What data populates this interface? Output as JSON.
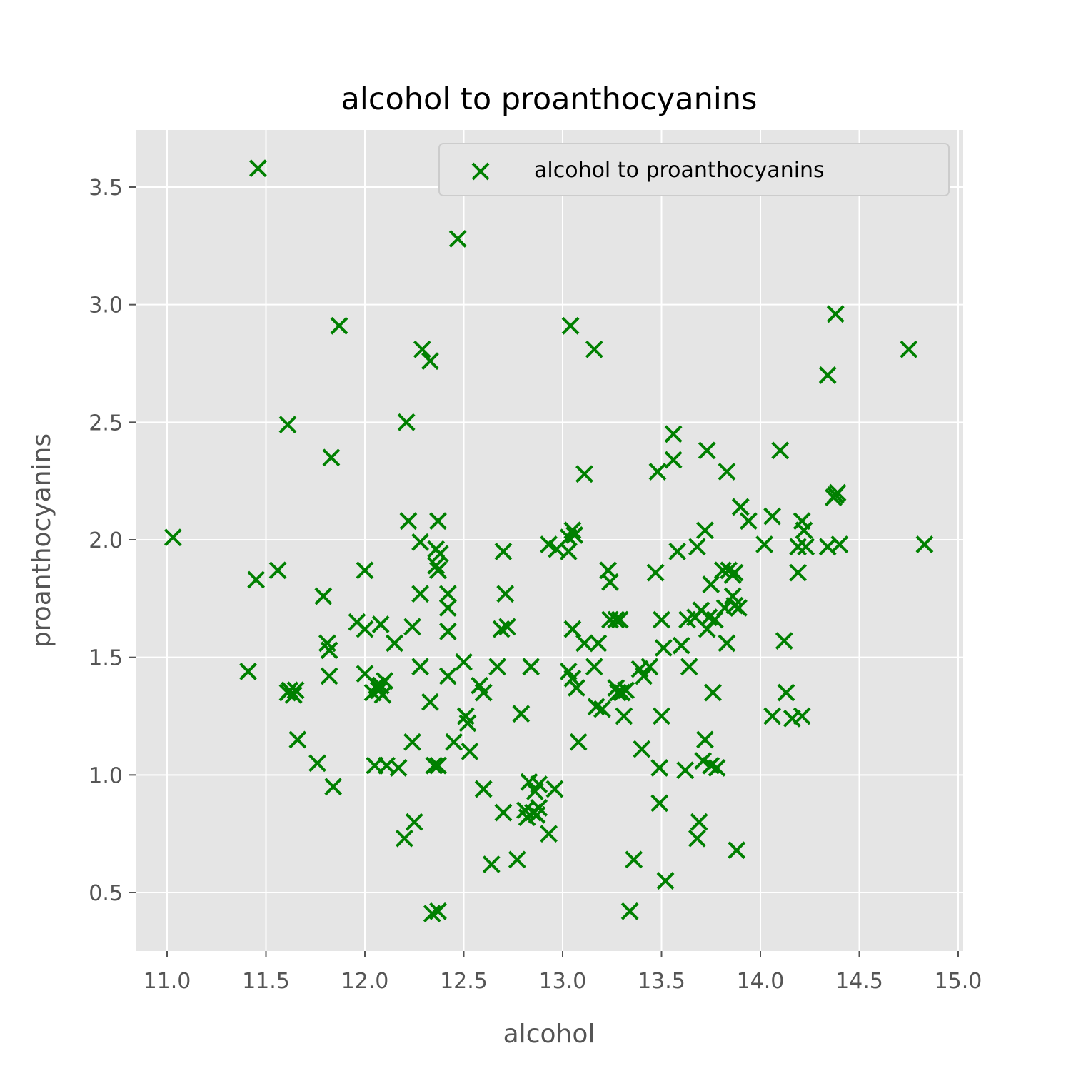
{
  "chart_data": {
    "type": "scatter",
    "title": "alcohol to proanthocyanins",
    "xlabel": "alcohol",
    "ylabel": "proanthocyanins",
    "xlim": [
      10.84,
      15.0
    ],
    "ylim": [
      0.25,
      3.75
    ],
    "xticks": [
      "11.0",
      "11.5",
      "12.0",
      "12.5",
      "13.0",
      "13.5",
      "14.0",
      "14.5",
      "15.0"
    ],
    "yticks": [
      "0.5",
      "1.0",
      "1.5",
      "2.0",
      "2.5",
      "3.0",
      "3.5"
    ],
    "grid": true,
    "legend_position": "top-right",
    "marker": "x",
    "colors": {
      "marker": "#008000",
      "plot_bg": "#e5e5e5",
      "grid": "#ffffff",
      "axis_text": "#555555"
    },
    "series": [
      {
        "name": "alcohol to proanthocyanins",
        "points": [
          [
            11.03,
            2.01
          ],
          [
            11.41,
            1.44
          ],
          [
            11.45,
            1.83
          ],
          [
            11.46,
            3.58
          ],
          [
            11.56,
            1.87
          ],
          [
            11.61,
            2.49
          ],
          [
            11.61,
            1.35
          ],
          [
            11.62,
            1.36
          ],
          [
            11.64,
            1.34
          ],
          [
            11.65,
            1.36
          ],
          [
            11.66,
            1.15
          ],
          [
            11.76,
            1.05
          ],
          [
            11.79,
            1.76
          ],
          [
            11.81,
            1.56
          ],
          [
            11.82,
            1.53
          ],
          [
            11.82,
            1.42
          ],
          [
            11.83,
            2.35
          ],
          [
            11.84,
            0.95
          ],
          [
            11.87,
            2.91
          ],
          [
            11.96,
            1.65
          ],
          [
            12.0,
            1.87
          ],
          [
            12.0,
            1.62
          ],
          [
            12.0,
            1.43
          ],
          [
            12.04,
            1.35
          ],
          [
            12.05,
            1.04
          ],
          [
            12.06,
            1.38
          ],
          [
            12.07,
            1.36
          ],
          [
            12.08,
            1.64
          ],
          [
            12.08,
            1.38
          ],
          [
            12.09,
            1.34
          ],
          [
            12.1,
            1.4
          ],
          [
            12.11,
            1.04
          ],
          [
            12.15,
            1.56
          ],
          [
            12.17,
            1.03
          ],
          [
            12.2,
            0.73
          ],
          [
            12.21,
            2.5
          ],
          [
            12.22,
            2.08
          ],
          [
            12.24,
            1.63
          ],
          [
            12.24,
            1.14
          ],
          [
            12.25,
            0.8
          ],
          [
            12.28,
            1.99
          ],
          [
            12.28,
            1.77
          ],
          [
            12.28,
            1.46
          ],
          [
            12.29,
            2.81
          ],
          [
            12.33,
            2.76
          ],
          [
            12.33,
            1.31
          ],
          [
            12.34,
            0.41
          ],
          [
            12.35,
            1.04
          ],
          [
            12.36,
            1.96
          ],
          [
            12.36,
            1.89
          ],
          [
            12.37,
            2.08
          ],
          [
            12.37,
            1.87
          ],
          [
            12.37,
            1.04
          ],
          [
            12.37,
            0.42
          ],
          [
            12.38,
            1.94
          ],
          [
            12.42,
            1.77
          ],
          [
            12.42,
            1.71
          ],
          [
            12.42,
            1.61
          ],
          [
            12.42,
            1.42
          ],
          [
            12.45,
            1.14
          ],
          [
            12.47,
            3.28
          ],
          [
            12.5,
            1.48
          ],
          [
            12.51,
            1.25
          ],
          [
            12.52,
            1.22
          ],
          [
            12.53,
            1.1
          ],
          [
            12.58,
            1.38
          ],
          [
            12.6,
            1.35
          ],
          [
            12.6,
            0.94
          ],
          [
            12.64,
            0.62
          ],
          [
            12.67,
            1.46
          ],
          [
            12.69,
            1.62
          ],
          [
            12.7,
            1.95
          ],
          [
            12.7,
            0.84
          ],
          [
            12.71,
            1.77
          ],
          [
            12.72,
            1.63
          ],
          [
            12.77,
            0.64
          ],
          [
            12.79,
            1.26
          ],
          [
            12.81,
            0.85
          ],
          [
            12.82,
            0.82
          ],
          [
            12.83,
            0.97
          ],
          [
            12.84,
            1.46
          ],
          [
            12.85,
            0.84
          ],
          [
            12.86,
            0.93
          ],
          [
            12.87,
            0.83
          ],
          [
            12.88,
            0.96
          ],
          [
            12.88,
            0.86
          ],
          [
            12.93,
            1.98
          ],
          [
            12.93,
            0.75
          ],
          [
            12.96,
            0.94
          ],
          [
            12.97,
            1.96
          ],
          [
            13.03,
            2.01
          ],
          [
            13.03,
            1.95
          ],
          [
            13.03,
            1.44
          ],
          [
            13.04,
            2.91
          ],
          [
            13.05,
            2.04
          ],
          [
            13.05,
            1.62
          ],
          [
            13.05,
            1.41
          ],
          [
            13.06,
            2.02
          ],
          [
            13.07,
            1.37
          ],
          [
            13.08,
            1.14
          ],
          [
            13.11,
            2.28
          ],
          [
            13.11,
            1.56
          ],
          [
            13.16,
            2.81
          ],
          [
            13.16,
            1.46
          ],
          [
            13.17,
            1.29
          ],
          [
            13.18,
            1.56
          ],
          [
            13.2,
            1.28
          ],
          [
            13.23,
            1.87
          ],
          [
            13.24,
            1.82
          ],
          [
            13.24,
            1.66
          ],
          [
            13.27,
            1.66
          ],
          [
            13.27,
            1.37
          ],
          [
            13.28,
            1.35
          ],
          [
            13.29,
            1.66
          ],
          [
            13.3,
            1.35
          ],
          [
            13.31,
            1.25
          ],
          [
            13.32,
            1.36
          ],
          [
            13.34,
            0.42
          ],
          [
            13.36,
            0.64
          ],
          [
            13.39,
            1.45
          ],
          [
            13.4,
            1.11
          ],
          [
            13.41,
            1.42
          ],
          [
            13.44,
            1.46
          ],
          [
            13.47,
            1.86
          ],
          [
            13.48,
            2.29
          ],
          [
            13.49,
            1.03
          ],
          [
            13.49,
            0.88
          ],
          [
            13.5,
            1.66
          ],
          [
            13.5,
            1.25
          ],
          [
            13.51,
            1.54
          ],
          [
            13.52,
            0.55
          ],
          [
            13.56,
            2.45
          ],
          [
            13.56,
            2.34
          ],
          [
            13.58,
            1.95
          ],
          [
            13.6,
            1.55
          ],
          [
            13.62,
            1.02
          ],
          [
            13.63,
            1.66
          ],
          [
            13.64,
            1.46
          ],
          [
            13.67,
            1.67
          ],
          [
            13.68,
            1.97
          ],
          [
            13.68,
            0.73
          ],
          [
            13.69,
            0.8
          ],
          [
            13.7,
            1.7
          ],
          [
            13.71,
            1.06
          ],
          [
            13.72,
            2.04
          ],
          [
            13.72,
            1.15
          ],
          [
            13.73,
            2.38
          ],
          [
            13.73,
            1.62
          ],
          [
            13.74,
            1.67
          ],
          [
            13.75,
            1.81
          ],
          [
            13.75,
            1.04
          ],
          [
            13.76,
            1.35
          ],
          [
            13.77,
            1.66
          ],
          [
            13.78,
            1.03
          ],
          [
            13.81,
            1.87
          ],
          [
            13.82,
            1.71
          ],
          [
            13.83,
            2.29
          ],
          [
            13.83,
            1.56
          ],
          [
            13.84,
            1.87
          ],
          [
            13.86,
            1.85
          ],
          [
            13.86,
            1.76
          ],
          [
            13.87,
            1.86
          ],
          [
            13.87,
            1.72
          ],
          [
            13.88,
            0.68
          ],
          [
            13.89,
            1.71
          ],
          [
            13.9,
            2.14
          ],
          [
            13.94,
            2.08
          ],
          [
            14.02,
            1.98
          ],
          [
            14.06,
            2.1
          ],
          [
            14.06,
            1.25
          ],
          [
            14.1,
            2.38
          ],
          [
            14.12,
            1.57
          ],
          [
            14.13,
            1.35
          ],
          [
            14.16,
            1.24
          ],
          [
            14.19,
            1.97
          ],
          [
            14.19,
            1.86
          ],
          [
            14.21,
            2.08
          ],
          [
            14.21,
            1.25
          ],
          [
            14.22,
            2.04
          ],
          [
            14.23,
            1.97
          ],
          [
            14.34,
            2.7
          ],
          [
            14.34,
            1.97
          ],
          [
            14.37,
            2.18
          ],
          [
            14.38,
            2.96
          ],
          [
            14.38,
            2.19
          ],
          [
            14.39,
            2.2
          ],
          [
            14.4,
            1.98
          ],
          [
            14.75,
            2.81
          ],
          [
            14.83,
            1.98
          ]
        ]
      }
    ]
  }
}
